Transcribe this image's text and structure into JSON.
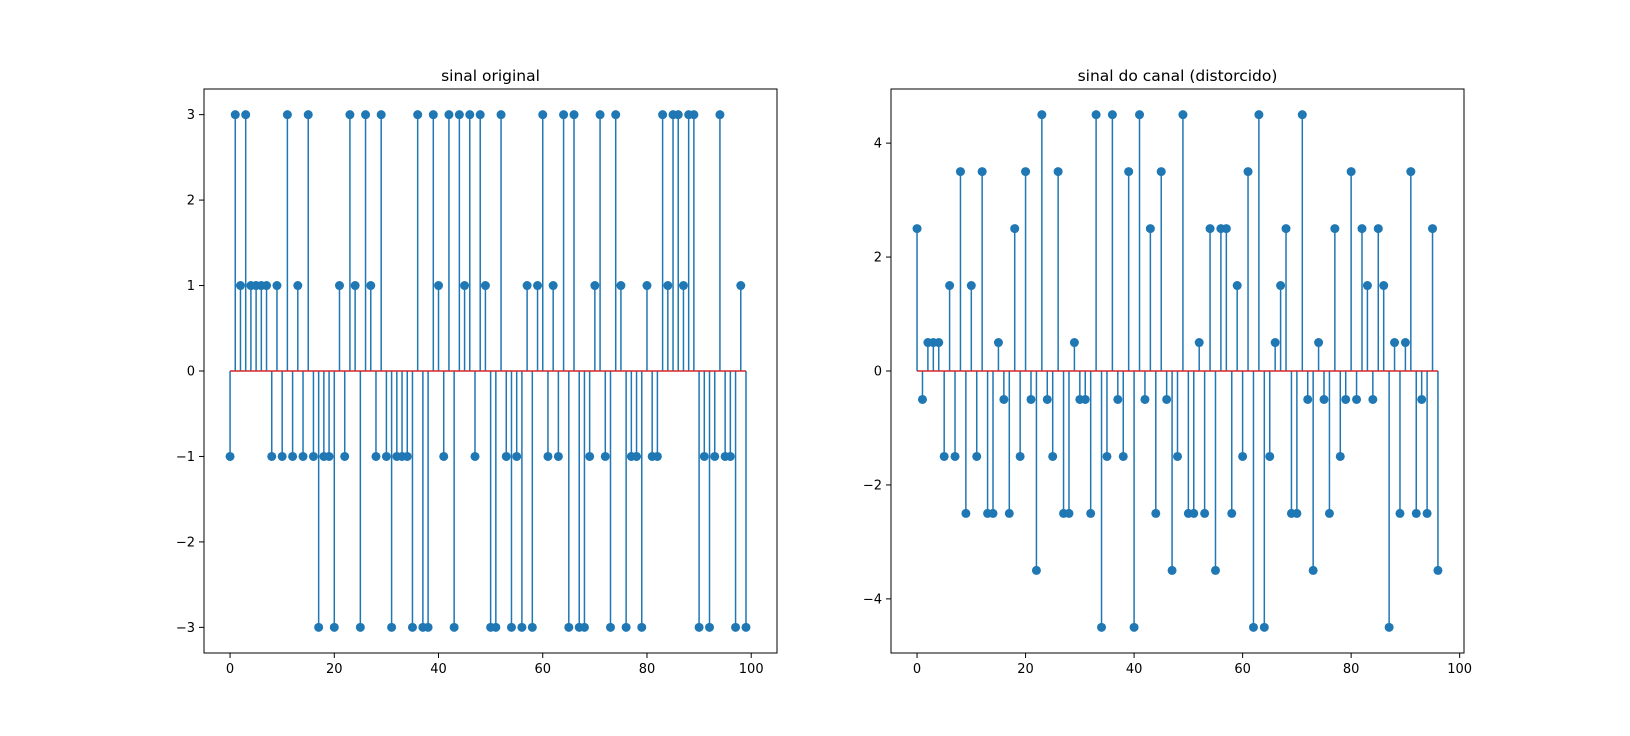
{
  "colors": {
    "stem": "#1f77b4",
    "baseline": "#d62728",
    "axes": "#000000"
  },
  "chart_data": [
    {
      "type": "stem",
      "title": "sinal original",
      "xlabel": "",
      "ylabel": "",
      "xlim": [
        -5,
        104.95
      ],
      "ylim": [
        -3.3,
        3.3
      ],
      "xticks": [
        0,
        20,
        40,
        60,
        80,
        100
      ],
      "yticks": [
        -3,
        -2,
        -1,
        0,
        1,
        2,
        3
      ],
      "grid": false,
      "baseline": 0,
      "x_start": 0,
      "values": [
        -1,
        3,
        1,
        3,
        1,
        1,
        1,
        1,
        -1,
        1,
        -1,
        3,
        -1,
        1,
        -1,
        3,
        -1,
        -3,
        -1,
        -1,
        -3,
        1,
        -1,
        3,
        1,
        -3,
        3,
        1,
        -1,
        3,
        -1,
        -3,
        -1,
        -1,
        -1,
        -3,
        3,
        -3,
        -3,
        3,
        1,
        -1,
        3,
        -3,
        3,
        1,
        3,
        -1,
        3,
        1,
        -3,
        -3,
        3,
        -1,
        -3,
        -1,
        -3,
        1,
        -3,
        1,
        3,
        -1,
        1,
        -1,
        3,
        -3,
        3,
        -3,
        -3,
        -1,
        1,
        3,
        -1,
        -3,
        3,
        1,
        -3,
        -1,
        -1,
        -3,
        1,
        -1,
        -1,
        3,
        1,
        3,
        3,
        1,
        3,
        3,
        -3,
        -1,
        -3,
        -1,
        3,
        -1,
        -1,
        -3,
        1,
        -3
      ]
    },
    {
      "type": "stem",
      "title": "sinal do canal (distorcido)",
      "xlabel": "",
      "ylabel": "",
      "xlim": [
        -4.8,
        100.8
      ],
      "ylim": [
        -4.95,
        4.95
      ],
      "xticks": [
        0,
        20,
        40,
        60,
        80,
        100
      ],
      "yticks": [
        -4,
        -2,
        0,
        2,
        4
      ],
      "grid": false,
      "baseline": 0,
      "x_start": 0,
      "values": [
        2.5,
        -0.5,
        0.5,
        0.5,
        0.5,
        -1.5,
        1.5,
        -1.5,
        3.5,
        -2.5,
        1.5,
        -1.5,
        3.5,
        -2.5,
        -2.5,
        0.5,
        -0.5,
        -2.5,
        2.5,
        -1.5,
        3.5,
        -0.5,
        -3.5,
        4.5,
        -0.5,
        -1.5,
        3.5,
        -2.5,
        -2.5,
        0.5,
        -0.5,
        -0.5,
        -2.5,
        4.5,
        -4.5,
        -1.5,
        4.5,
        -0.5,
        -1.5,
        3.5,
        -4.5,
        4.5,
        -0.5,
        2.5,
        -2.5,
        3.5,
        -0.5,
        -3.5,
        -1.5,
        4.5,
        -2.5,
        -2.5,
        0.5,
        -2.5,
        2.5,
        -3.5,
        2.5,
        2.5,
        -2.5,
        1.5,
        -1.5,
        3.5,
        -4.5,
        4.5,
        -4.5,
        -1.5,
        0.5,
        1.5,
        2.5,
        -2.5,
        -2.5,
        4.5,
        -0.5,
        -3.5,
        0.5,
        -0.5,
        -2.5,
        2.5,
        -1.5,
        -0.5,
        3.5,
        -0.5,
        2.5,
        1.5,
        -0.5,
        2.5,
        1.5,
        -4.5,
        0.5,
        -2.5,
        0.5,
        3.5,
        -2.5,
        -0.5,
        -2.5,
        2.5,
        -3.5
      ]
    }
  ]
}
